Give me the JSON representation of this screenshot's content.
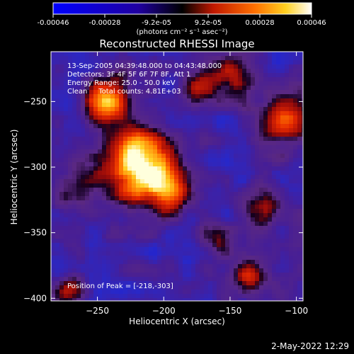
{
  "colorbar": {
    "ticks": [
      "-0.00046",
      "-0.00028",
      "-9.2e-05",
      "9.2e-05",
      "0.00028",
      "0.00046"
    ],
    "unit_label": "(photons cm⁻² s⁻¹ asec⁻²)"
  },
  "chart_data": {
    "type": "heatmap",
    "title": "Reconstructed RHESSI Image",
    "xlabel": "Heliocentric X (arcsec)",
    "ylabel": "Heliocentric Y (arcsec)",
    "xlim": [
      -285,
      -95
    ],
    "ylim": [
      -402,
      -212
    ],
    "x_ticks": [
      -250,
      -200,
      -150,
      -100
    ],
    "y_ticks": [
      -400,
      -350,
      -300,
      -250
    ],
    "x_tick_labels": [
      "−250",
      "−200",
      "−150",
      "−100"
    ],
    "y_tick_labels": [
      "−400",
      "−350",
      "−300",
      "−250"
    ],
    "color_range": [
      -0.00046,
      0.00046
    ],
    "annotations": [
      "13-Sep-2005 04:39:48.000 to 04:43:48.000",
      "Detectors: 3F 4F 5F 6F 7F 8F, Att 1",
      "Energy Range: 25.0 - 50.0 keV",
      "Clean     Total counts: 4.81E+03"
    ],
    "peak_label": "Position of Peak = [-218,-303]",
    "peak_position": [
      -218,
      -303
    ],
    "sources": [
      {
        "x": -218,
        "y": -298,
        "amp": 1.0,
        "sigma": 20
      },
      {
        "x": -243,
        "y": -250,
        "amp": 0.75,
        "sigma": 12
      },
      {
        "x": -195,
        "y": -318,
        "amp": 0.55,
        "sigma": 12
      },
      {
        "x": -265,
        "y": -320,
        "amp": 0.3,
        "sigma": 10
      },
      {
        "x": -150,
        "y": -230,
        "amp": 0.55,
        "sigma": 12
      },
      {
        "x": -110,
        "y": -265,
        "amp": 0.6,
        "sigma": 14
      },
      {
        "x": -125,
        "y": -330,
        "amp": 0.45,
        "sigma": 11
      },
      {
        "x": -135,
        "y": -385,
        "amp": 0.55,
        "sigma": 10
      },
      {
        "x": -270,
        "y": -395,
        "amp": 0.4,
        "sigma": 9
      },
      {
        "x": -175,
        "y": -240,
        "amp": 0.35,
        "sigma": 8
      },
      {
        "x": -160,
        "y": -355,
        "amp": 0.3,
        "sigma": 9
      },
      {
        "x": -230,
        "y": -225,
        "amp": 0.3,
        "sigma": 8
      }
    ]
  },
  "footer": {
    "timestamp": "2-May-2022 12:29"
  }
}
